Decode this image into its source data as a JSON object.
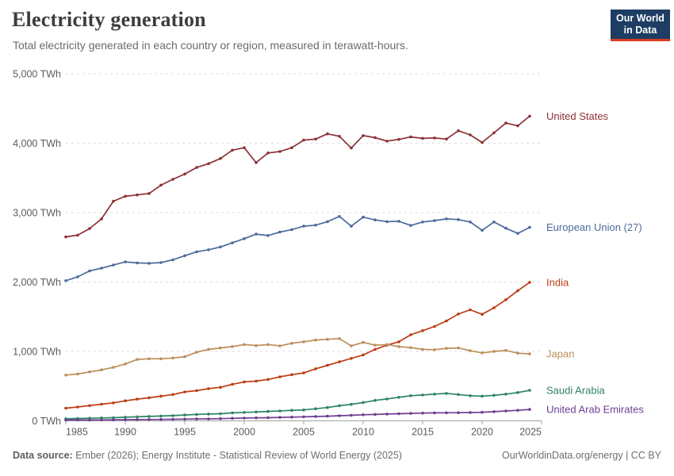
{
  "header": {
    "title": "Electricity generation",
    "subtitle": "Total electricity generated in each country or region, measured in terawatt-hours."
  },
  "logo": {
    "line1": "Our World",
    "line2": "in Data",
    "bg_color": "#1d3d63",
    "accent_color": "#dc3c22"
  },
  "footer": {
    "source_label": "Data source:",
    "source_text": " Ember (2026); Energy Institute - Statistical Review of World Energy (2025)",
    "right_text": "OurWorldinData.org/energy | CC BY"
  },
  "chart_data": {
    "type": "line",
    "title": "Electricity generation",
    "unit": "TWh",
    "x": [
      1985,
      1986,
      1987,
      1988,
      1989,
      1990,
      1991,
      1992,
      1993,
      1994,
      1995,
      1996,
      1997,
      1998,
      1999,
      2000,
      2001,
      2002,
      2003,
      2004,
      2005,
      2006,
      2007,
      2008,
      2009,
      2010,
      2011,
      2012,
      2013,
      2014,
      2015,
      2016,
      2017,
      2018,
      2019,
      2020,
      2021,
      2022,
      2023,
      2024
    ],
    "x_ticks": [
      1985,
      1990,
      1995,
      2000,
      2005,
      2010,
      2015,
      2020,
      2025
    ],
    "y_ticks": [
      0,
      1000,
      2000,
      3000,
      4000,
      5000
    ],
    "y_tick_suffix": " TWh",
    "xlim": [
      1985,
      2025
    ],
    "ylim": [
      0,
      5000
    ],
    "grid": "dashed-horizontal",
    "legend_position": "right-of-line-end",
    "grid_color": "#dcdcdc",
    "axis_color": "#a0a0a0",
    "tick_label_color": "#5b5b5b",
    "series": [
      {
        "name": "United States",
        "color": "#8C3135",
        "values": [
          2650,
          2675,
          2770,
          2910,
          3165,
          3235,
          3255,
          3275,
          3395,
          3480,
          3555,
          3650,
          3705,
          3780,
          3900,
          3935,
          3720,
          3860,
          3880,
          3935,
          4045,
          4060,
          4135,
          4100,
          3930,
          4110,
          4080,
          4030,
          4055,
          4090,
          4070,
          4075,
          4060,
          4180,
          4120,
          4010,
          4150,
          4290,
          4250,
          4390
        ]
      },
      {
        "name": "European Union (27)",
        "color": "#4C6A9C",
        "values": [
          2020,
          2075,
          2160,
          2200,
          2245,
          2290,
          2275,
          2270,
          2280,
          2320,
          2380,
          2435,
          2465,
          2505,
          2565,
          2625,
          2690,
          2670,
          2720,
          2755,
          2805,
          2820,
          2870,
          2945,
          2805,
          2935,
          2895,
          2870,
          2875,
          2815,
          2865,
          2885,
          2910,
          2900,
          2865,
          2745,
          2865,
          2775,
          2700,
          2787
        ]
      },
      {
        "name": "India",
        "color": "#BC3D13",
        "values": [
          183,
          200,
          220,
          240,
          260,
          289,
          313,
          332,
          356,
          380,
          417,
          436,
          464,
          483,
          527,
          561,
          572,
          597,
          634,
          665,
          690,
          750,
          800,
          850,
          900,
          950,
          1030,
          1090,
          1140,
          1240,
          1300,
          1360,
          1440,
          1540,
          1600,
          1535,
          1630,
          1745,
          1875,
          1995
        ]
      },
      {
        "name": "Japan",
        "color": "#BC8E5A",
        "values": [
          660,
          675,
          705,
          735,
          770,
          820,
          885,
          895,
          895,
          905,
          925,
          990,
          1030,
          1050,
          1070,
          1100,
          1085,
          1100,
          1080,
          1118,
          1140,
          1165,
          1175,
          1185,
          1080,
          1130,
          1090,
          1100,
          1070,
          1055,
          1030,
          1025,
          1045,
          1050,
          1010,
          980,
          1000,
          1015,
          975,
          965
        ]
      },
      {
        "name": "Saudi Arabia",
        "color": "#2C8465",
        "values": [
          30,
          34,
          38,
          42,
          46,
          52,
          58,
          64,
          70,
          76,
          85,
          92,
          98,
          103,
          115,
          122,
          128,
          136,
          143,
          152,
          158,
          175,
          192,
          218,
          238,
          264,
          295,
          315,
          340,
          362,
          372,
          385,
          395,
          380,
          362,
          356,
          368,
          385,
          408,
          440
        ]
      },
      {
        "name": "United Arab Emirates",
        "color": "#6D3E91",
        "values": [
          11,
          12,
          13,
          14,
          15,
          17,
          18,
          19,
          21,
          23,
          25,
          27,
          29,
          32,
          37,
          40,
          43,
          46,
          50,
          54,
          58,
          63,
          68,
          74,
          80,
          88,
          93,
          98,
          103,
          108,
          112,
          115,
          117,
          118,
          120,
          123,
          132,
          143,
          152,
          165
        ]
      }
    ]
  }
}
